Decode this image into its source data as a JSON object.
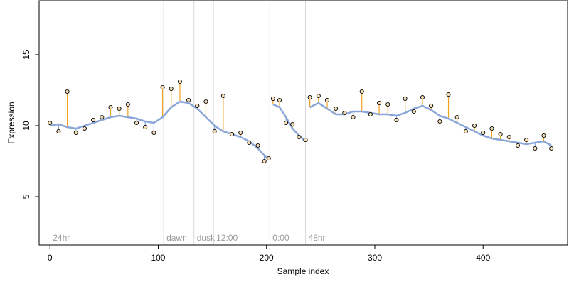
{
  "chart_data": {
    "type": "scatter",
    "xlabel": "Sample index",
    "ylabel": "Expression",
    "xlim": [
      -10,
      478
    ],
    "ylim": [
      1.6,
      18.8
    ],
    "x_ticks": [
      0,
      100,
      200,
      300,
      400
    ],
    "y_ticks": [
      5,
      10,
      15
    ],
    "grid": false,
    "colors": {
      "fitted": "#8aa6d8",
      "residual_up": "#f2a11c",
      "residual_down": "#7fa2d9",
      "event_line": "#d9d9d9",
      "point_fill": "#f3dcb8",
      "point_edge": "#000000"
    },
    "events": [
      {
        "label": "24hr",
        "x": 0
      },
      {
        "label": "dawn",
        "x": 105
      },
      {
        "label": "dusk",
        "x": 133
      },
      {
        "label": "12:00",
        "x": 151
      },
      {
        "label": "0:00",
        "x": 203
      },
      {
        "label": "48hr",
        "x": 236
      }
    ],
    "series": [
      {
        "x": [
          0,
          8,
          16,
          24,
          32,
          40,
          48,
          56,
          64,
          72,
          80,
          88,
          96,
          104,
          112,
          120,
          128,
          136,
          144,
          152,
          160,
          168,
          176,
          184,
          192,
          198,
          202,
          206,
          212,
          218,
          224,
          230,
          236,
          240,
          248,
          256,
          264,
          272,
          280,
          288,
          296,
          304,
          312,
          320,
          328,
          336,
          344,
          352,
          360,
          368,
          376,
          384,
          392,
          400,
          408,
          416,
          424,
          432,
          440,
          448,
          456,
          463
        ],
        "fitted": [
          10.0,
          10.1,
          9.9,
          9.8,
          10.0,
          10.2,
          10.4,
          10.6,
          10.7,
          10.6,
          10.5,
          10.3,
          10.2,
          10.6,
          11.3,
          11.7,
          11.6,
          11.2,
          10.6,
          10.0,
          9.6,
          9.4,
          9.2,
          8.9,
          8.4,
          7.9,
          7.6,
          11.5,
          11.3,
          10.6,
          9.8,
          9.3,
          8.9,
          11.3,
          11.6,
          11.2,
          10.8,
          10.8,
          11.0,
          11.0,
          10.9,
          10.8,
          10.8,
          10.7,
          10.9,
          11.2,
          11.4,
          11.1,
          10.7,
          10.5,
          10.2,
          9.9,
          9.6,
          9.3,
          9.1,
          9.0,
          8.9,
          8.8,
          8.7,
          8.8,
          8.9,
          8.6
        ],
        "y": [
          10.2,
          9.6,
          12.4,
          9.5,
          9.8,
          10.4,
          10.6,
          11.3,
          11.2,
          11.5,
          10.2,
          9.9,
          9.5,
          12.7,
          12.6,
          13.1,
          11.8,
          11.4,
          11.7,
          9.6,
          12.1,
          9.4,
          9.5,
          8.8,
          8.6,
          7.5,
          7.7,
          11.9,
          11.8,
          10.2,
          10.1,
          9.2,
          9.0,
          12.0,
          12.1,
          11.8,
          11.2,
          10.9,
          10.6,
          12.4,
          10.8,
          11.6,
          11.5,
          10.4,
          11.9,
          11.0,
          12.0,
          11.4,
          10.3,
          12.2,
          10.6,
          9.6,
          10.0,
          9.5,
          9.8,
          9.4,
          9.2,
          8.6,
          9.0,
          8.4,
          9.3,
          8.4
        ]
      }
    ]
  }
}
